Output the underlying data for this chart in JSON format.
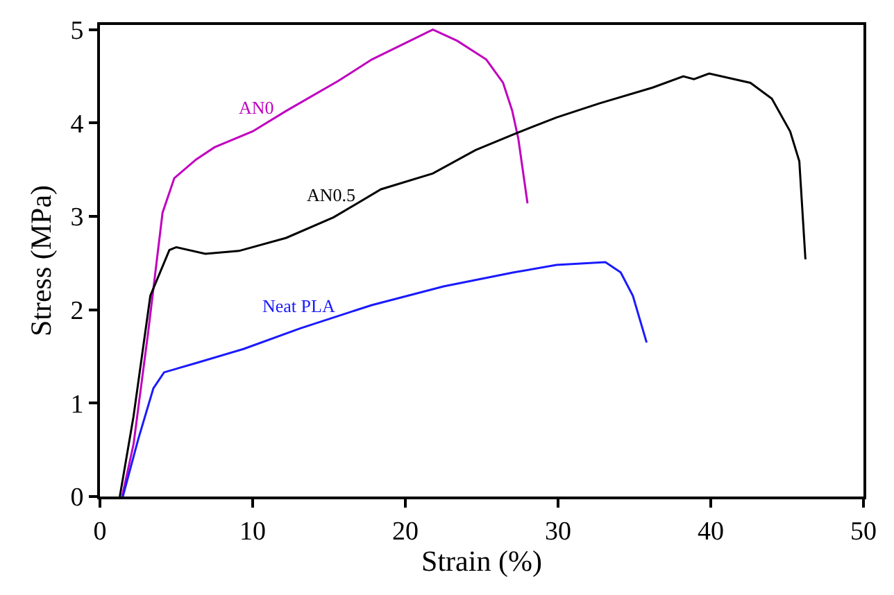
{
  "chart_data": {
    "type": "line",
    "xlabel": "Strain (%)",
    "ylabel": "Stress (MPa)",
    "xlim": [
      0,
      50
    ],
    "ylim": [
      0,
      5.05
    ],
    "xticks": [
      0,
      10,
      20,
      30,
      40,
      50
    ],
    "yticks": [
      0,
      1,
      2,
      3,
      4,
      5
    ],
    "legend": false,
    "marker": "none",
    "line_style": "solid",
    "series": [
      {
        "name": "AN0",
        "color": "#c000c0",
        "x": [
          1.45,
          2.2,
          3.15,
          4.1,
          4.87,
          6.3,
          7.5,
          10,
          12.2,
          15.6,
          17.8,
          20.3,
          21.8,
          23.4,
          25.3,
          26.4,
          27.0,
          27.4,
          28.0
        ],
        "values": [
          0,
          0.56,
          1.75,
          3.04,
          3.41,
          3.61,
          3.74,
          3.91,
          4.13,
          4.45,
          4.68,
          4.88,
          5.0,
          4.88,
          4.68,
          4.43,
          4.13,
          3.83,
          3.14
        ]
      },
      {
        "name": "AN0.5",
        "color": "#000000",
        "x": [
          1.3,
          2.2,
          3.3,
          4.55,
          5.0,
          6.9,
          9.1,
          12.2,
          15.3,
          18.4,
          21.8,
          24.6,
          27.1,
          29.9,
          32.7,
          36.2,
          38.2,
          38.9,
          39.9,
          42.6,
          44.0,
          45.2,
          45.8,
          46.2
        ],
        "values": [
          0,
          0.86,
          2.15,
          2.64,
          2.67,
          2.6,
          2.63,
          2.77,
          2.99,
          3.29,
          3.46,
          3.71,
          3.88,
          4.06,
          4.21,
          4.38,
          4.5,
          4.47,
          4.53,
          4.43,
          4.26,
          3.91,
          3.59,
          2.54
        ]
      },
      {
        "name": "Neat PLA",
        "color": "#1a1aff",
        "x": [
          1.5,
          2.5,
          3.5,
          4.2,
          6.3,
          9.4,
          13.1,
          17.8,
          22.5,
          27.1,
          29.9,
          33.1,
          34.1,
          34.9,
          35.8
        ],
        "values": [
          0,
          0.61,
          1.16,
          1.33,
          1.43,
          1.58,
          1.8,
          2.05,
          2.25,
          2.4,
          2.48,
          2.51,
          2.4,
          2.15,
          1.65
        ]
      }
    ]
  }
}
